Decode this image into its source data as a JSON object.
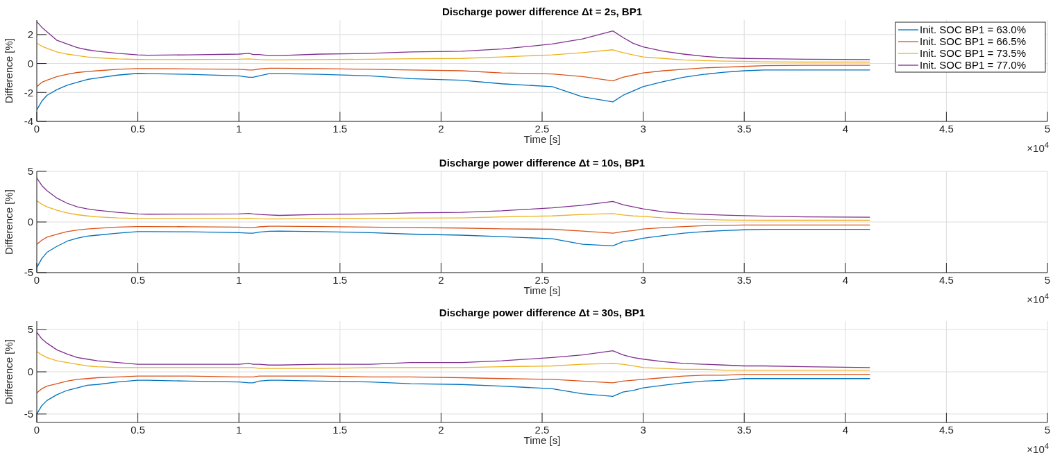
{
  "chart_data": [
    {
      "type": "line",
      "title": "Discharge power difference Δt = 2s, BP1",
      "xlabel": "Time [s]",
      "ylabel": "Difference [%]",
      "annotations": [
        "×10$^{4}$"
      ],
      "grid": true,
      "legend": "top right",
      "xlim": [
        0,
        5
      ],
      "xticks": [
        0,
        0.5,
        1,
        1.5,
        2,
        2.5,
        3,
        3.5,
        4,
        4.5,
        5
      ],
      "ylim": [
        -4,
        3
      ],
      "yticks": [
        -4,
        -2,
        0,
        2
      ],
      "x": [
        0,
        0.025,
        0.05,
        0.1,
        0.15,
        0.2,
        0.25,
        0.3,
        0.4,
        0.5,
        0.55,
        0.75,
        1,
        1.05,
        1.07,
        1.1,
        1.15,
        1.2,
        1.4,
        1.65,
        1.85,
        2.1,
        2.3,
        2.55,
        2.7,
        2.85,
        2.9,
        2.95,
        3,
        3.1,
        3.2,
        3.3,
        3.4,
        3.5,
        3.6,
        3.8,
        4.12
      ],
      "series": [
        {
          "name": "Init. SOC BP1 = 63.0%",
          "color": "#0072bd",
          "values": [
            -3.2,
            -2.6,
            -2.2,
            -1.8,
            -1.5,
            -1.3,
            -1.1,
            -1.0,
            -0.8,
            -0.68,
            -0.7,
            -0.75,
            -0.85,
            -0.95,
            -0.95,
            -0.85,
            -0.7,
            -0.7,
            -0.75,
            -0.85,
            -1.05,
            -1.15,
            -1.4,
            -1.6,
            -2.3,
            -2.65,
            -2.2,
            -1.9,
            -1.6,
            -1.25,
            -0.95,
            -0.75,
            -0.6,
            -0.5,
            -0.45,
            -0.45,
            -0.45
          ]
        },
        {
          "name": "Init. SOC BP1 = 66.5%",
          "color": "#d95319",
          "values": [
            -1.6,
            -1.3,
            -1.15,
            -0.9,
            -0.75,
            -0.62,
            -0.55,
            -0.5,
            -0.4,
            -0.35,
            -0.35,
            -0.37,
            -0.4,
            -0.45,
            -0.45,
            -0.38,
            -0.33,
            -0.33,
            -0.35,
            -0.4,
            -0.45,
            -0.5,
            -0.65,
            -0.72,
            -0.9,
            -1.2,
            -0.95,
            -0.8,
            -0.65,
            -0.5,
            -0.4,
            -0.3,
            -0.25,
            -0.2,
            -0.15,
            -0.12,
            -0.12
          ]
        },
        {
          "name": "Init. SOC BP1 = 73.5%",
          "color": "#edb120",
          "values": [
            1.4,
            1.2,
            1.05,
            0.8,
            0.65,
            0.55,
            0.45,
            0.4,
            0.32,
            0.28,
            0.27,
            0.28,
            0.3,
            0.32,
            0.3,
            0.27,
            0.25,
            0.25,
            0.27,
            0.3,
            0.33,
            0.35,
            0.45,
            0.6,
            0.75,
            0.95,
            0.75,
            0.6,
            0.45,
            0.35,
            0.25,
            0.2,
            0.17,
            0.15,
            0.12,
            0.1,
            0.1
          ]
        },
        {
          "name": "Init. SOC BP1 = 77.0%",
          "color": "#7e2f8e",
          "values": [
            2.9,
            2.5,
            2.2,
            1.6,
            1.35,
            1.1,
            0.95,
            0.85,
            0.7,
            0.6,
            0.57,
            0.6,
            0.65,
            0.7,
            0.62,
            0.62,
            0.55,
            0.55,
            0.65,
            0.7,
            0.8,
            0.85,
            1.0,
            1.35,
            1.7,
            2.25,
            1.8,
            1.4,
            1.15,
            0.85,
            0.65,
            0.5,
            0.4,
            0.35,
            0.33,
            0.3,
            0.27
          ]
        }
      ]
    },
    {
      "type": "line",
      "title": "Discharge power difference Δt = 10s, BP1",
      "xlabel": "Time [s]",
      "ylabel": "Difference [%]",
      "annotations": [
        "×10$^{4}$"
      ],
      "grid": true,
      "xlim": [
        0,
        5
      ],
      "xticks": [
        0,
        0.5,
        1,
        1.5,
        2,
        2.5,
        3,
        3.5,
        4,
        4.5,
        5
      ],
      "ylim": [
        -5,
        5
      ],
      "yticks": [
        -5,
        0,
        5
      ],
      "x": [
        0,
        0.025,
        0.05,
        0.1,
        0.15,
        0.2,
        0.25,
        0.3,
        0.4,
        0.5,
        0.55,
        0.75,
        1,
        1.05,
        1.07,
        1.1,
        1.15,
        1.2,
        1.4,
        1.65,
        1.85,
        2.1,
        2.3,
        2.55,
        2.7,
        2.85,
        2.9,
        2.95,
        3,
        3.1,
        3.2,
        3.3,
        3.4,
        3.5,
        3.6,
        3.8,
        4.12
      ],
      "series": [
        {
          "color": "#0072bd",
          "values": [
            -4.5,
            -3.6,
            -3.0,
            -2.4,
            -1.9,
            -1.6,
            -1.4,
            -1.3,
            -1.1,
            -0.95,
            -0.95,
            -0.97,
            -1.05,
            -1.1,
            -1.1,
            -1.0,
            -0.92,
            -0.9,
            -0.95,
            -1.05,
            -1.2,
            -1.3,
            -1.45,
            -1.65,
            -2.2,
            -2.35,
            -1.95,
            -1.8,
            -1.6,
            -1.35,
            -1.1,
            -0.95,
            -0.85,
            -0.77,
            -0.73,
            -0.73,
            -0.73
          ]
        },
        {
          "color": "#d95319",
          "values": [
            -2.2,
            -1.8,
            -1.5,
            -1.2,
            -0.95,
            -0.8,
            -0.7,
            -0.62,
            -0.5,
            -0.45,
            -0.45,
            -0.47,
            -0.5,
            -0.55,
            -0.55,
            -0.48,
            -0.42,
            -0.42,
            -0.45,
            -0.5,
            -0.55,
            -0.6,
            -0.68,
            -0.72,
            -0.9,
            -1.1,
            -0.95,
            -0.85,
            -0.7,
            -0.55,
            -0.45,
            -0.37,
            -0.33,
            -0.3,
            -0.3,
            -0.3,
            -0.3
          ]
        },
        {
          "color": "#edb120",
          "values": [
            2.1,
            1.75,
            1.5,
            1.15,
            0.9,
            0.72,
            0.6,
            0.5,
            0.4,
            0.35,
            0.33,
            0.33,
            0.35,
            0.37,
            0.35,
            0.32,
            0.3,
            0.3,
            0.33,
            0.35,
            0.38,
            0.4,
            0.5,
            0.6,
            0.75,
            0.83,
            0.7,
            0.6,
            0.55,
            0.4,
            0.3,
            0.25,
            0.2,
            0.18,
            0.17,
            0.17,
            0.17
          ]
        },
        {
          "color": "#7e2f8e",
          "values": [
            4.35,
            3.6,
            3.1,
            2.35,
            1.85,
            1.5,
            1.3,
            1.15,
            0.95,
            0.8,
            0.77,
            0.78,
            0.8,
            0.85,
            0.8,
            0.75,
            0.7,
            0.65,
            0.75,
            0.8,
            0.9,
            0.95,
            1.1,
            1.4,
            1.65,
            2.03,
            1.7,
            1.5,
            1.3,
            1.0,
            0.85,
            0.75,
            0.68,
            0.63,
            0.57,
            0.5,
            0.47
          ]
        }
      ]
    },
    {
      "type": "line",
      "title": "Discharge power difference Δt = 30s, BP1",
      "xlabel": "Time [s]",
      "ylabel": "Difference [%]",
      "annotations": [
        "×10$^{4}$"
      ],
      "grid": true,
      "xlim": [
        0,
        5
      ],
      "xticks": [
        0,
        0.5,
        1,
        1.5,
        2,
        2.5,
        3,
        3.5,
        4,
        4.5,
        5
      ],
      "ylim": [
        -6,
        6
      ],
      "yticks": [
        -5,
        0,
        5
      ],
      "x": [
        0,
        0.025,
        0.05,
        0.1,
        0.15,
        0.2,
        0.25,
        0.3,
        0.4,
        0.5,
        0.55,
        0.75,
        1,
        1.05,
        1.07,
        1.1,
        1.15,
        1.2,
        1.4,
        1.65,
        1.85,
        2.1,
        2.3,
        2.55,
        2.7,
        2.85,
        2.9,
        2.95,
        3,
        3.1,
        3.2,
        3.3,
        3.4,
        3.5,
        3.6,
        3.8,
        4.12
      ],
      "series": [
        {
          "color": "#0072bd",
          "values": [
            -5.0,
            -4.0,
            -3.4,
            -2.7,
            -2.2,
            -1.9,
            -1.6,
            -1.5,
            -1.2,
            -1.0,
            -1.0,
            -1.1,
            -1.2,
            -1.3,
            -1.3,
            -1.1,
            -1.0,
            -1.0,
            -1.1,
            -1.2,
            -1.4,
            -1.5,
            -1.7,
            -2.0,
            -2.6,
            -2.9,
            -2.4,
            -2.2,
            -1.9,
            -1.6,
            -1.3,
            -1.1,
            -1.0,
            -0.8,
            -0.8,
            -0.8,
            -0.8
          ]
        },
        {
          "color": "#d95319",
          "values": [
            -2.5,
            -2.0,
            -1.7,
            -1.4,
            -1.1,
            -0.9,
            -0.8,
            -0.7,
            -0.6,
            -0.5,
            -0.5,
            -0.5,
            -0.6,
            -0.6,
            -0.6,
            -0.5,
            -0.5,
            -0.5,
            -0.5,
            -0.6,
            -0.6,
            -0.7,
            -0.8,
            -0.9,
            -1.1,
            -1.3,
            -1.1,
            -1.0,
            -0.9,
            -0.7,
            -0.5,
            -0.4,
            -0.4,
            -0.3,
            -0.3,
            -0.3,
            -0.3
          ]
        },
        {
          "color": "#edb120",
          "values": [
            2.4,
            2.0,
            1.7,
            1.3,
            1.1,
            0.9,
            0.7,
            0.6,
            0.5,
            0.5,
            0.5,
            0.5,
            0.5,
            0.5,
            0.5,
            0.4,
            0.4,
            0.4,
            0.4,
            0.5,
            0.5,
            0.5,
            0.6,
            0.7,
            0.9,
            1.0,
            0.9,
            0.7,
            0.5,
            0.4,
            0.3,
            0.3,
            0.2,
            0.2,
            0.2,
            0.2,
            0.2
          ]
        },
        {
          "color": "#7e2f8e",
          "values": [
            4.7,
            3.9,
            3.4,
            2.6,
            2.1,
            1.7,
            1.5,
            1.3,
            1.1,
            0.9,
            0.9,
            0.9,
            0.9,
            1.0,
            0.9,
            0.9,
            0.8,
            0.8,
            0.9,
            0.9,
            1.1,
            1.1,
            1.3,
            1.7,
            2.0,
            2.5,
            2.0,
            1.7,
            1.5,
            1.2,
            1.0,
            0.9,
            0.8,
            0.7,
            0.7,
            0.6,
            0.5
          ]
        }
      ]
    }
  ]
}
